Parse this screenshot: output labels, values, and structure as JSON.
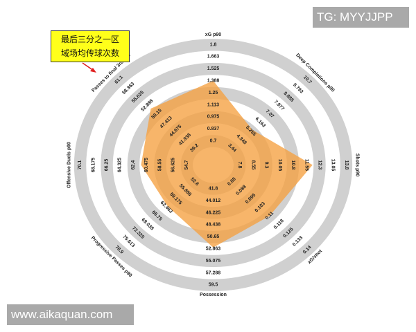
{
  "watermarks": {
    "top_right": "TG: MYYJJPP",
    "bottom_left": "www.aikaquan.com"
  },
  "annotation": {
    "lines": [
      "最后三分之一区",
      "域场均传球次数"
    ],
    "background": "#ffff1a",
    "arrow_color": "#e02020"
  },
  "colors": {
    "band": "#d0d0d0",
    "fill": "#f5a040"
  },
  "chart_data": {
    "type": "radar",
    "grid": true,
    "axes": [
      {
        "name": "xG p90",
        "ticks": [
          "0.7",
          "0.837",
          "0.975",
          "1.113",
          "1.25",
          "1.388",
          "1.525",
          "1.663",
          "1.8"
        ],
        "min": 0.7,
        "max": 1.8,
        "value": 1.39
      },
      {
        "name": "Deep Completions p90",
        "ticks": [
          "3.44",
          "4.348",
          "5.255",
          "6.163",
          "7.07",
          "7.977",
          "8.885",
          "9.793",
          "10.7"
        ],
        "min": 3.44,
        "max": 10.7,
        "value": 5.4
      },
      {
        "name": "Shots p90",
        "ticks": [
          "7.8",
          "8.55",
          "9.3",
          "10.05",
          "10.8",
          "11.55",
          "12.3",
          "13.05",
          "13.8"
        ],
        "min": 7.8,
        "max": 13.8,
        "value": 11.9
      },
      {
        "name": "xG/shot",
        "ticks": [
          "0.08",
          "0.088",
          "0.095",
          "0.103",
          "0.11",
          "0.118",
          "0.125",
          "0.133",
          "0.14"
        ],
        "min": 0.08,
        "max": 0.14,
        "value": 0.11
      },
      {
        "name": "Possession",
        "ticks": [
          "41.8",
          "44.012",
          "46.225",
          "48.438",
          "50.65",
          "52.863",
          "55.075",
          "57.288",
          "59.5"
        ],
        "min": 41.8,
        "max": 59.5,
        "value": 52.6
      },
      {
        "name": "Progressive Passes p90",
        "ticks": [
          "52.6",
          "55.888",
          "59.175",
          "62.463",
          "65.75",
          "69.038",
          "72.325",
          "75.613",
          "78.9"
        ],
        "min": 52.6,
        "max": 78.9,
        "value": 62.0
      },
      {
        "name": "Offensive Duels p90",
        "ticks": [
          "54.7",
          "56.625",
          "58.55",
          "60.475",
          "62.4",
          "64.325",
          "66.25",
          "68.175",
          "70.1"
        ],
        "min": 54.7,
        "max": 70.1,
        "value": 61.3
      },
      {
        "name": "Passes to final 3rd p90",
        "ticks": [
          "39.2",
          "41.938",
          "44.675",
          "47.413",
          "50.15",
          "52.888",
          "55.625",
          "58.363",
          "61.1"
        ],
        "min": 39.2,
        "max": 61.1,
        "value": 51.9
      }
    ]
  }
}
